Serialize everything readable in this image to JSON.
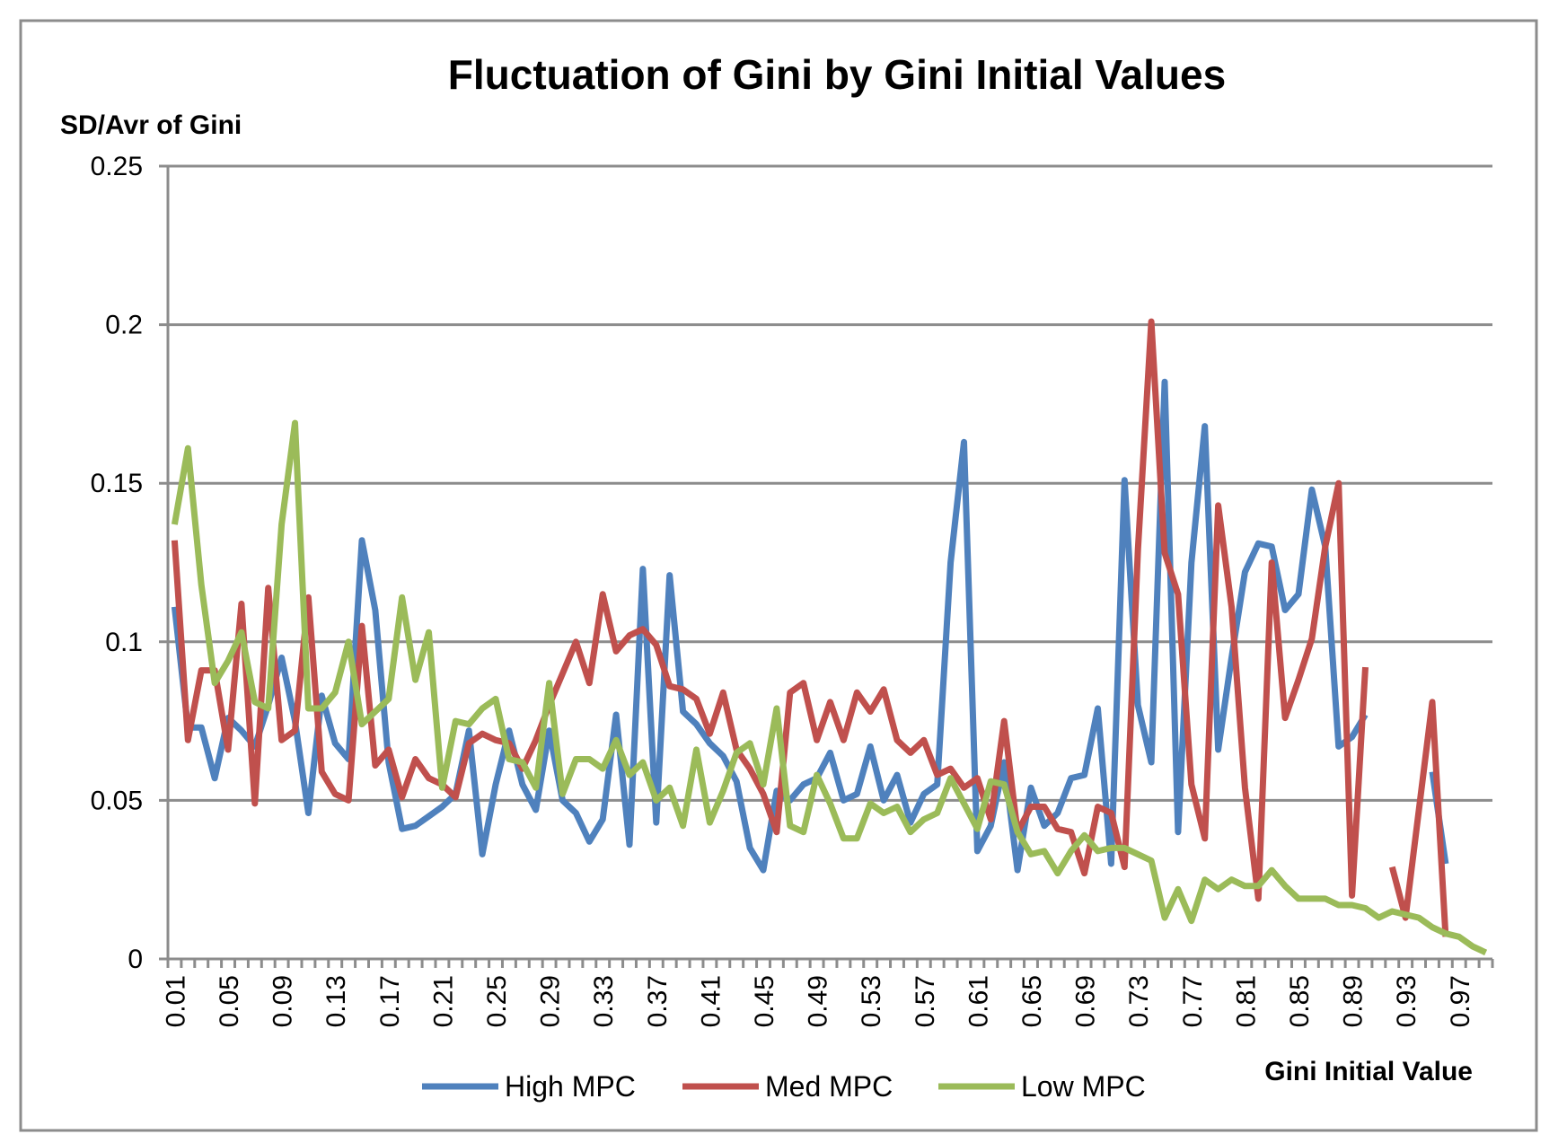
{
  "chart_data": {
    "type": "line",
    "title": "Fluctuation of Gini by Gini Initial Values",
    "ylabel": "SD/Avr of Gini",
    "xlabel": "Gini Initial Value",
    "ylim": [
      0,
      0.25
    ],
    "yticks": [
      0,
      0.05,
      0.1,
      0.15,
      0.2,
      0.25
    ],
    "ytick_labels": [
      "0",
      "0.05",
      "0.1",
      "0.15",
      "0.2",
      "0.25"
    ],
    "x": [
      0.01,
      0.02,
      0.03,
      0.04,
      0.05,
      0.06,
      0.07,
      0.08,
      0.09,
      0.1,
      0.11,
      0.12,
      0.13,
      0.14,
      0.15,
      0.16,
      0.17,
      0.18,
      0.19,
      0.2,
      0.21,
      0.22,
      0.23,
      0.24,
      0.25,
      0.26,
      0.27,
      0.28,
      0.29,
      0.3,
      0.31,
      0.32,
      0.33,
      0.34,
      0.35,
      0.36,
      0.37,
      0.38,
      0.39,
      0.4,
      0.41,
      0.42,
      0.43,
      0.44,
      0.45,
      0.46,
      0.47,
      0.48,
      0.49,
      0.5,
      0.51,
      0.52,
      0.53,
      0.54,
      0.55,
      0.56,
      0.57,
      0.58,
      0.59,
      0.6,
      0.61,
      0.62,
      0.63,
      0.64,
      0.65,
      0.66,
      0.67,
      0.68,
      0.69,
      0.7,
      0.71,
      0.72,
      0.73,
      0.74,
      0.75,
      0.76,
      0.77,
      0.78,
      0.79,
      0.8,
      0.81,
      0.82,
      0.83,
      0.84,
      0.85,
      0.86,
      0.87,
      0.88,
      0.89,
      0.9,
      0.91,
      0.92,
      0.93,
      0.94,
      0.95,
      0.96,
      0.97,
      0.98,
      0.99
    ],
    "xtick_labels": [
      "0.01",
      "0.05",
      "0.09",
      "0.13",
      "0.17",
      "0.21",
      "0.25",
      "0.29",
      "0.33",
      "0.37",
      "0.41",
      "0.45",
      "0.49",
      "0.53",
      "0.57",
      "0.61",
      "0.65",
      "0.69",
      "0.73",
      "0.77",
      "0.81",
      "0.85",
      "0.89",
      "0.93",
      "0.97"
    ],
    "grid": true,
    "legend_position": "bottom",
    "series": [
      {
        "name": "High MPC",
        "color": "#4f81bd",
        "values": [
          0.111,
          0.073,
          0.073,
          0.057,
          0.076,
          0.072,
          0.067,
          0.08,
          0.095,
          0.075,
          0.046,
          0.083,
          0.068,
          0.063,
          0.132,
          0.11,
          0.062,
          0.041,
          0.042,
          0.045,
          0.048,
          0.052,
          0.072,
          0.033,
          0.055,
          0.072,
          0.055,
          0.047,
          0.072,
          0.05,
          0.046,
          0.037,
          0.044,
          0.077,
          0.036,
          0.123,
          0.043,
          0.121,
          0.078,
          0.074,
          0.068,
          0.064,
          0.056,
          0.035,
          0.028,
          0.053,
          0.05,
          0.055,
          0.057,
          0.065,
          0.05,
          0.052,
          0.067,
          0.05,
          0.058,
          0.043,
          0.052,
          0.055,
          0.125,
          0.163,
          0.034,
          0.042,
          0.062,
          0.028,
          0.054,
          0.042,
          0.046,
          0.057,
          0.058,
          0.079,
          0.03,
          0.151,
          0.08,
          0.062,
          0.182,
          0.04,
          0.125,
          0.168,
          0.066,
          0.095,
          0.122,
          0.131,
          0.13,
          0.11,
          0.115,
          0.148,
          0.13,
          0.067,
          0.07,
          0.077,
          null,
          null,
          null,
          null,
          0.059,
          0.03,
          null,
          null,
          null
        ]
      },
      {
        "name": "Med MPC",
        "color": "#c0504d",
        "values": [
          0.132,
          0.069,
          0.091,
          0.091,
          0.066,
          0.112,
          0.049,
          0.117,
          0.069,
          0.072,
          0.114,
          0.059,
          0.052,
          0.05,
          0.105,
          0.061,
          0.066,
          0.051,
          0.063,
          0.057,
          0.055,
          0.051,
          0.068,
          0.071,
          0.069,
          0.068,
          0.06,
          0.069,
          0.08,
          0.09,
          0.1,
          0.087,
          0.115,
          0.097,
          0.102,
          0.104,
          0.099,
          0.086,
          0.085,
          0.082,
          0.071,
          0.084,
          0.066,
          0.06,
          0.052,
          0.04,
          0.084,
          0.087,
          0.069,
          0.081,
          0.069,
          0.084,
          0.078,
          0.085,
          0.069,
          0.065,
          0.069,
          0.058,
          0.06,
          0.054,
          0.057,
          0.044,
          0.075,
          0.04,
          0.048,
          0.048,
          0.041,
          0.04,
          0.027,
          0.048,
          0.046,
          0.029,
          0.129,
          0.201,
          0.128,
          0.115,
          0.055,
          0.038,
          0.143,
          0.111,
          0.054,
          0.019,
          0.125,
          0.076,
          0.088,
          0.101,
          0.13,
          0.15,
          0.02,
          0.092,
          null,
          0.029,
          0.013,
          0.047,
          0.081,
          0.007,
          null,
          null,
          null
        ]
      },
      {
        "name": "Low MPC",
        "color": "#9bbb59",
        "values": [
          0.137,
          0.161,
          0.118,
          0.087,
          0.094,
          0.103,
          0.081,
          0.079,
          0.137,
          0.169,
          0.079,
          0.079,
          0.084,
          0.1,
          0.074,
          0.078,
          0.082,
          0.114,
          0.088,
          0.103,
          0.054,
          0.075,
          0.074,
          0.079,
          0.082,
          0.063,
          0.062,
          0.054,
          0.087,
          0.052,
          0.063,
          0.063,
          0.06,
          0.069,
          0.058,
          0.062,
          0.05,
          0.054,
          0.042,
          0.066,
          0.043,
          0.053,
          0.065,
          0.068,
          0.055,
          0.079,
          0.042,
          0.04,
          0.058,
          0.049,
          0.038,
          0.038,
          0.049,
          0.046,
          0.048,
          0.04,
          0.044,
          0.046,
          0.057,
          0.049,
          0.041,
          0.056,
          0.055,
          0.04,
          0.033,
          0.034,
          0.027,
          0.034,
          0.039,
          0.034,
          0.035,
          0.035,
          0.033,
          0.031,
          0.013,
          0.022,
          0.012,
          0.025,
          0.022,
          0.025,
          0.023,
          0.023,
          0.028,
          0.023,
          0.019,
          0.019,
          0.019,
          0.017,
          0.017,
          0.016,
          0.013,
          0.015,
          0.014,
          0.013,
          0.01,
          0.008,
          0.007,
          0.004,
          0.002
        ]
      }
    ]
  }
}
